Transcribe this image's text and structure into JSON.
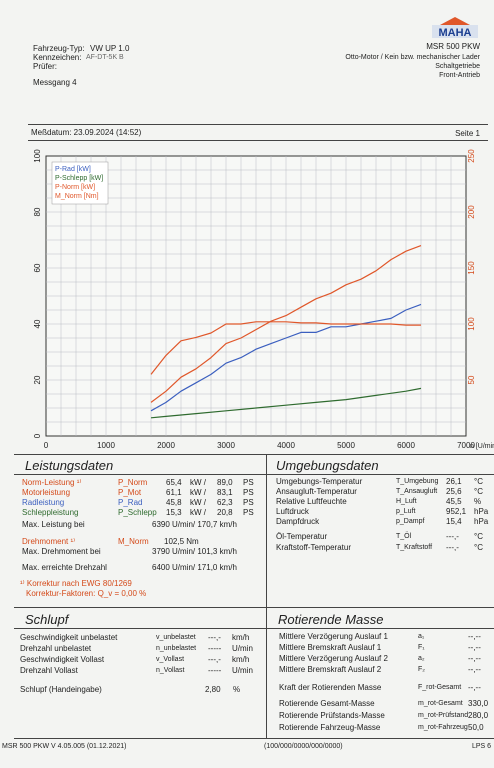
{
  "header": {
    "brand": "MAHA",
    "model": "MSR 500 PKW",
    "vehicle_type_label": "Fahrzeug-Typ:",
    "vehicle_type_value": "VW UP 1.0",
    "plate_label": "Kennzeichen:",
    "plate_value": "AF-DT-5K  B",
    "tester_label": "Prüfer:",
    "engine_line": "Otto-Motor / Kein bzw. mechanischer Lader",
    "gearbox": "Schaltgetriebe",
    "drive": "Front-Antrieb",
    "test_name": "Messgang 4",
    "date": "Meßdatum: 23.09.2024 (14:52)",
    "page": "Seite 1"
  },
  "chart_data": {
    "type": "line",
    "x_axis": {
      "label": "n [U/min]",
      "min": 0,
      "max": 7000,
      "ticks": [
        0,
        1000,
        2000,
        3000,
        4000,
        5000,
        6000,
        7000
      ]
    },
    "y_left": {
      "min": 0,
      "max": 100,
      "ticks": [
        0,
        20,
        40,
        60,
        80,
        100
      ]
    },
    "y_right": {
      "min": 0,
      "max": 250,
      "ticks": [
        50,
        100,
        150,
        200,
        250
      ]
    },
    "legend": [
      "P-Rad [kW]",
      "P-Schlepp [kW]",
      "P-Norm [kW]",
      "M_Norm [Nm]"
    ],
    "legend_placement": "top-left",
    "grid": true,
    "series": [
      {
        "name": "P-Rad [kW]",
        "color": "#3b5fbf",
        "axis": "left",
        "x": [
          1750,
          2000,
          2250,
          2500,
          2750,
          3000,
          3250,
          3500,
          3750,
          4000,
          4250,
          4500,
          4750,
          5000,
          5250,
          5500,
          5750,
          6000,
          6250
        ],
        "y": [
          9,
          12,
          16,
          19,
          22,
          26,
          28,
          31,
          33,
          35,
          37,
          37,
          39,
          39,
          40,
          41,
          42,
          45,
          47
        ]
      },
      {
        "name": "P-Schlepp [kW]",
        "color": "#2f6b2f",
        "axis": "left",
        "x": [
          1750,
          2000,
          2500,
          3000,
          3500,
          4000,
          4500,
          5000,
          5500,
          6000,
          6250
        ],
        "y": [
          6.5,
          7,
          8,
          9,
          10,
          11,
          12,
          13,
          14.5,
          16,
          17
        ]
      },
      {
        "name": "P-Norm [kW]",
        "color": "#e0572a",
        "axis": "left",
        "x": [
          1750,
          2000,
          2250,
          2500,
          2750,
          3000,
          3250,
          3500,
          3750,
          4000,
          4250,
          4500,
          4750,
          5000,
          5250,
          5500,
          5750,
          6000,
          6250
        ],
        "y": [
          12,
          16,
          21,
          24,
          28,
          33,
          35,
          38,
          41,
          43,
          46,
          49,
          51,
          54,
          56,
          59,
          63,
          66,
          68
        ]
      },
      {
        "name": "M_Norm [Nm]",
        "color": "#e0572a",
        "axis": "right",
        "x": [
          1750,
          2000,
          2250,
          2500,
          2750,
          3000,
          3250,
          3500,
          3750,
          4000,
          4250,
          4500,
          4750,
          5000,
          5250,
          5500,
          5750,
          6000,
          6250
        ],
        "y": [
          55,
          72,
          85,
          88,
          92,
          100,
          100,
          102,
          102,
          102,
          101,
          101,
          100,
          100,
          100,
          100,
          100,
          99,
          99
        ]
      }
    ]
  },
  "leistungsdaten": {
    "title": "Leistungsdaten",
    "rows": [
      {
        "label": "Norm-Leistung ¹⁾",
        "sym": "P_Norm",
        "v1": "65,4",
        "u1": "kW",
        "v2": "89,0",
        "u2": "PS"
      },
      {
        "label": "Motorleistung",
        "sym": "P_Mot",
        "v1": "61,1",
        "u1": "kW",
        "v2": "83,1",
        "u2": "PS"
      },
      {
        "label": "Radleistung",
        "sym": "P_Rad",
        "v1": "45,8",
        "u1": "kW",
        "v2": "62,3",
        "u2": "PS"
      },
      {
        "label": "Schleppleistung",
        "sym": "P_Schlepp",
        "v1": "15,3",
        "u1": "kW",
        "v2": "20,8",
        "u2": "PS"
      }
    ],
    "max_power_label": "Max. Leistung bei",
    "max_power_value": "6390  U/min/  170,7  km/h",
    "torque_label": "Drehmoment ¹⁾",
    "torque_sym": "M_Norm",
    "torque_value": "102,5  Nm",
    "max_torque_label": "Max. Drehmoment bei",
    "max_torque_value": "3790  U/min/  101,3  km/h",
    "max_rpm_label": "Max. erreichte Drehzahl",
    "max_rpm_value": "6400  U/min/  171,0  km/h",
    "footnote1": "¹⁾ Korrektur nach EWG 80/1269",
    "footnote2": "Korrektur-Faktoren: Q_v =  0,00 %"
  },
  "umgebung": {
    "title": "Umgebungsdaten",
    "rows": [
      {
        "label": "Umgebungs-Temperatur",
        "sym": "T_Umgebung",
        "val": "26,1",
        "unit": "°C"
      },
      {
        "label": "Ansaugluft-Temperatur",
        "sym": "T_Ansaugluft",
        "val": "25,6",
        "unit": "°C"
      },
      {
        "label": "Relative Luftfeuchte",
        "sym": "H_Luft",
        "val": "45,5",
        "unit": "%"
      },
      {
        "label": "Luftdruck",
        "sym": "p_Luft",
        "val": "952,1",
        "unit": "hPa"
      },
      {
        "label": "Dampfdruck",
        "sym": "p_Dampf",
        "val": "15,4",
        "unit": "hPa"
      },
      {
        "label": "Öl-Temperatur",
        "sym": "T_Öl",
        "val": "---,-",
        "unit": "°C"
      },
      {
        "label": "Kraftstoff-Temperatur",
        "sym": "T_Kraftstoff",
        "val": "---,-",
        "unit": "°C"
      }
    ]
  },
  "schlupf": {
    "title": "Schlupf",
    "rows": [
      {
        "label": "Geschwindigkeit unbelastet",
        "sym": "v_unbelastet",
        "val": "---,-",
        "unit": "km/h"
      },
      {
        "label": "Drehzahl unbelastet",
        "sym": "n_unbelastet",
        "val": "-----",
        "unit": "U/min"
      },
      {
        "label": "Geschwindigkeit Vollast",
        "sym": "v_Vollast",
        "val": "---,-",
        "unit": "km/h"
      },
      {
        "label": "Drehzahl Vollast",
        "sym": "n_Vollast",
        "val": "-----",
        "unit": "U/min"
      }
    ],
    "hand_label": "Schlupf (Handeingabe)",
    "hand_value": "2,80",
    "hand_unit": "%"
  },
  "masse": {
    "title": "Rotierende Masse",
    "rows": [
      {
        "label": "Mittlere Verzögerung Auslauf 1",
        "sym": "a₁",
        "val": "--,--"
      },
      {
        "label": "Mittlere Bremskraft Auslauf 1",
        "sym": "F₁",
        "val": "--,--"
      },
      {
        "label": "Mittlere Verzögerung Auslauf 2",
        "sym": "a₂",
        "val": "--,--"
      },
      {
        "label": "Mittlere Bremskraft Auslauf 2",
        "sym": "F₂",
        "val": "--,--"
      },
      {
        "label": "Kraft der Rotierenden Masse",
        "sym": "F_rot-Gesamt",
        "val": "--,--"
      },
      {
        "label": "Rotierende Gesamt-Masse",
        "sym": "m_rot-Gesamt",
        "val": "330,0"
      },
      {
        "label": "Rotierende Prüfstands-Masse",
        "sym": "m_rot-Prüfstand",
        "val": "280,0"
      },
      {
        "label": "Rotierende Fahrzeug-Masse",
        "sym": "m_rot-Fahrzeug",
        "val": "50,0"
      }
    ]
  },
  "footer": {
    "version": "MSR 500 PKW V 4.05.005 (01.12.2021)",
    "code": "(100/000/0000/000/0000)",
    "right": "LPS 6"
  }
}
